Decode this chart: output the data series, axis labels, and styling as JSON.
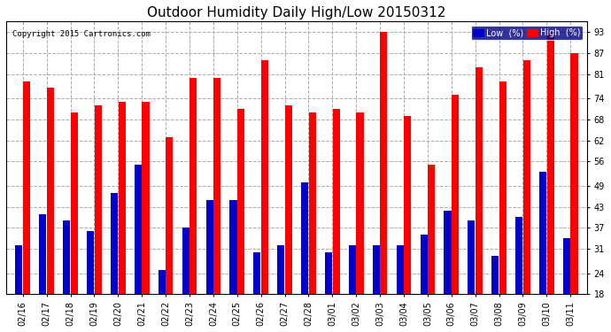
{
  "title": "Outdoor Humidity Daily High/Low 20150312",
  "copyright": "Copyright 2015 Cartronics.com",
  "dates": [
    "02/16",
    "02/17",
    "02/18",
    "02/19",
    "02/20",
    "02/21",
    "02/22",
    "02/23",
    "02/24",
    "02/25",
    "02/26",
    "02/27",
    "02/28",
    "03/01",
    "03/02",
    "03/03",
    "03/04",
    "03/05",
    "03/06",
    "03/07",
    "03/08",
    "03/09",
    "03/10",
    "03/11"
  ],
  "high": [
    79,
    77,
    70,
    72,
    73,
    73,
    63,
    80,
    80,
    71,
    85,
    72,
    70,
    71,
    70,
    93,
    69,
    55,
    75,
    83,
    79,
    85,
    93,
    87
  ],
  "low": [
    32,
    41,
    39,
    36,
    47,
    55,
    25,
    37,
    45,
    45,
    30,
    32,
    50,
    30,
    32,
    32,
    32,
    35,
    42,
    39,
    29,
    40,
    53,
    34
  ],
  "high_color": "#ff0000",
  "low_color": "#0000cc",
  "bg_color": "#ffffff",
  "plot_bg": "#ffffff",
  "grid_color": "#aaaaaa",
  "yticks": [
    18,
    24,
    31,
    37,
    43,
    49,
    56,
    62,
    68,
    74,
    81,
    87,
    93
  ],
  "ymin": 18,
  "ymax": 96,
  "bar_width": 0.3,
  "bar_gap": 0.02,
  "title_fontsize": 11,
  "tick_fontsize": 7,
  "legend_low_label": "Low  (%)",
  "legend_high_label": "High  (%)"
}
